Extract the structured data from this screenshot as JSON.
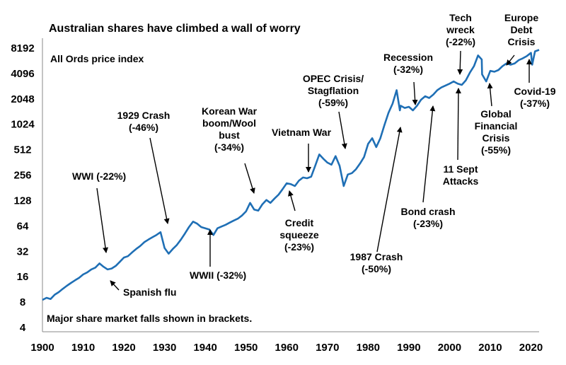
{
  "chart_data": {
    "type": "line",
    "title": "Australian shares have climbed a wall of worry",
    "subtitle": "All Ords price index",
    "footnote": "Major share market falls shown in brackets.",
    "y_scale": "log2",
    "ylim": [
      4,
      8192
    ],
    "y_ticks": [
      "8192",
      "4096",
      "2048",
      "1024",
      "512",
      "256",
      "128",
      "64",
      "32",
      "16",
      "8",
      "4"
    ],
    "xlim": [
      1900,
      2022
    ],
    "x_ticks": [
      "1900",
      "1910",
      "1920",
      "1930",
      "1940",
      "1950",
      "1960",
      "1970",
      "1980",
      "1990",
      "2000",
      "2010",
      "2020"
    ],
    "line_color": "#1f6fb5",
    "series": [
      {
        "x": [
          1900,
          1901,
          1902,
          1903,
          1904,
          1905,
          1906,
          1907,
          1908,
          1909,
          1910,
          1911,
          1912,
          1913,
          1914,
          1915,
          1916,
          1917,
          1918,
          1919,
          1920,
          1921,
          1922,
          1923,
          1924,
          1925,
          1926,
          1927,
          1928,
          1929,
          1930,
          1931,
          1932,
          1933,
          1934,
          1935,
          1936,
          1937,
          1938,
          1939,
          1940,
          1941,
          1942,
          1943,
          1944,
          1945,
          1946,
          1947,
          1948,
          1949,
          1950,
          1951,
          1952,
          1953,
          1954,
          1955,
          1956,
          1957,
          1958,
          1959,
          1960,
          1961,
          1962,
          1963,
          1964,
          1965,
          1966,
          1967,
          1968,
          1969,
          1970,
          1971,
          1972,
          1973,
          1974,
          1975,
          1976,
          1977,
          1978,
          1979,
          1980,
          1981,
          1982,
          1983,
          1984,
          1985,
          1986,
          1987,
          1987.8,
          1988,
          1989,
          1990,
          1991,
          1992,
          1993,
          1994,
          1995,
          1996,
          1997,
          1998,
          1999,
          2000,
          2001,
          2002,
          2003,
          2004,
          2005,
          2006,
          2007,
          2007.9,
          2008,
          2009,
          2010,
          2011,
          2012,
          2013,
          2014,
          2015,
          2016,
          2017,
          2018,
          2019,
          2020,
          2020.3,
          2021,
          2022
        ],
        "values": [
          8.5,
          9,
          8.7,
          9.8,
          10.5,
          11.5,
          12.5,
          13.5,
          14.5,
          15.5,
          17,
          18,
          19.5,
          20.5,
          23,
          21,
          19.5,
          20,
          21.5,
          24,
          27,
          28,
          31,
          34,
          37,
          41,
          44,
          47,
          50,
          54,
          35,
          30,
          34,
          38,
          44,
          52,
          62,
          72,
          68,
          62,
          60,
          58,
          50,
          60,
          63,
          66,
          70,
          74,
          78,
          85,
          95,
          120,
          100,
          97,
          115,
          130,
          120,
          135,
          150,
          175,
          205,
          200,
          190,
          220,
          240,
          235,
          245,
          330,
          450,
          400,
          360,
          340,
          430,
          330,
          190,
          260,
          270,
          300,
          350,
          420,
          600,
          700,
          550,
          700,
          1000,
          1400,
          1800,
          2600,
          1500,
          1700,
          1600,
          1650,
          1500,
          1700,
          2000,
          2200,
          2100,
          2300,
          2600,
          2800,
          2950,
          3100,
          3300,
          3100,
          3000,
          3400,
          4200,
          5000,
          6700,
          6000,
          4000,
          3300,
          4400,
          4300,
          4500,
          5000,
          5400,
          5200,
          5400,
          5900,
          6200,
          6600,
          7200,
          5200,
          7500,
          7800
        ]
      }
    ],
    "annotations": [
      {
        "id": "wwi",
        "lines": [
          "WWI (-22%)"
        ]
      },
      {
        "id": "spanish-flu",
        "lines": [
          "Spanish flu"
        ]
      },
      {
        "id": "crash-1929",
        "lines": [
          "1929 Crash",
          "(-46%)"
        ]
      },
      {
        "id": "wwii",
        "lines": [
          "WWII (-32%)"
        ]
      },
      {
        "id": "korean-war",
        "lines": [
          "Korean War",
          "boom/Wool",
          "bust",
          "(-34%)"
        ]
      },
      {
        "id": "credit-squeeze",
        "lines": [
          "Credit",
          "squeeze",
          "(-23%)"
        ]
      },
      {
        "id": "vietnam-war",
        "lines": [
          "Vietnam War"
        ]
      },
      {
        "id": "opec",
        "lines": [
          "OPEC Crisis/",
          "Stagflation",
          "(-59%)"
        ]
      },
      {
        "id": "crash-1987",
        "lines": [
          "1987 Crash",
          "(-50%)"
        ]
      },
      {
        "id": "recession",
        "lines": [
          "Recession",
          "(-32%)"
        ]
      },
      {
        "id": "bond-crash",
        "lines": [
          "Bond crash",
          "(-23%)"
        ]
      },
      {
        "id": "tech-wreck",
        "lines": [
          "Tech",
          "wreck",
          "(-22%)"
        ]
      },
      {
        "id": "sept-11",
        "lines": [
          "11 Sept",
          "Attacks"
        ]
      },
      {
        "id": "gfc",
        "lines": [
          "Global",
          "Financial",
          "Crisis",
          "(-55%)"
        ]
      },
      {
        "id": "europe-debt",
        "lines": [
          "Europe",
          "Debt",
          "Crisis"
        ]
      },
      {
        "id": "covid",
        "lines": [
          "Covid-19",
          "(-37%)"
        ]
      }
    ]
  }
}
